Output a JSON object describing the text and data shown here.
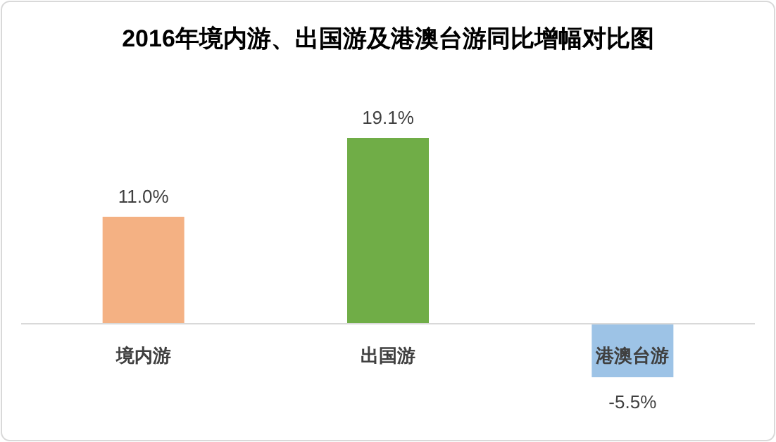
{
  "chart_data": {
    "type": "bar",
    "title": "2016年境内游、出国游及港澳台游同比增幅对比图",
    "categories": [
      "境内游",
      "出国游",
      "港澳台游"
    ],
    "values": [
      11.0,
      19.1,
      -5.5
    ],
    "colors": [
      "#f4b183",
      "#70ad47",
      "#9dc3e6"
    ],
    "value_labels": [
      "11.0%",
      "19.1%",
      "-5.5%"
    ]
  }
}
